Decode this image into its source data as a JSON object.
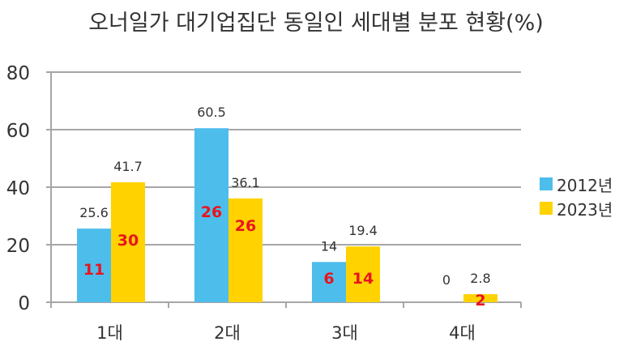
{
  "title": "오너일가 대기업집단 동일인 세대별 분포 현황(%)",
  "colors": {
    "series_2012": "#4DBDEC",
    "series_2023": "#FFD200",
    "inner_label": "#E8141E",
    "grid": "#A6A6A6",
    "text": "#333333"
  },
  "legend": [
    {
      "label": "2012년",
      "color": "#4DBDEC"
    },
    {
      "label": "2023년",
      "color": "#FFD200"
    }
  ],
  "chart_data": {
    "type": "bar",
    "title": "오너일가 대기업집단 동일인 세대별 분포 현황(%)",
    "xlabel": "",
    "ylabel": "",
    "ylim": [
      0,
      80
    ],
    "yticks": [
      0,
      20,
      40,
      60,
      80
    ],
    "grid": true,
    "legend_position": "right",
    "categories": [
      "1대",
      "2대",
      "3대",
      "4대"
    ],
    "series": [
      {
        "name": "2012년",
        "values": [
          25.6,
          60.5,
          14,
          0
        ],
        "inner_labels": [
          "11",
          "26",
          "6",
          ""
        ]
      },
      {
        "name": "2023년",
        "values": [
          41.7,
          36.1,
          19.4,
          2.8
        ],
        "inner_labels": [
          "30",
          "26",
          "14",
          "2"
        ]
      }
    ]
  }
}
